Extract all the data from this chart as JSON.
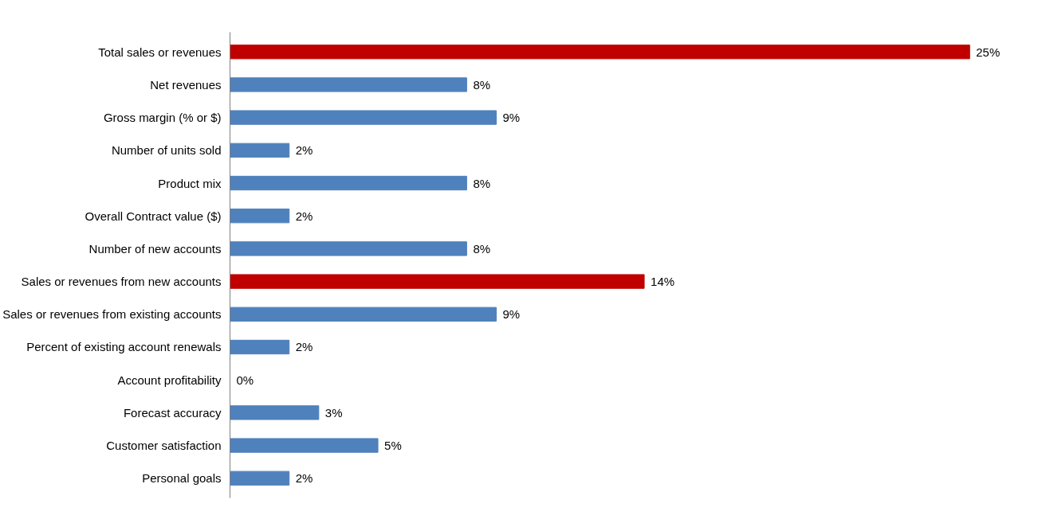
{
  "chart_data": {
    "type": "bar",
    "orientation": "horizontal",
    "grid": false,
    "value_labels": [
      "25%",
      "8%",
      "9%",
      "2%",
      "8%",
      "2%",
      "8%",
      "14%",
      "9%",
      "2%",
      "0%",
      "3%",
      "5%",
      "2%"
    ],
    "categories": [
      "Total sales or revenues",
      "Net revenues",
      "Gross margin (% or $)",
      "Number of units sold",
      "Product mix",
      "Overall Contract value ($)",
      "Number of new accounts",
      "Sales or revenues from new accounts",
      "Sales or revenues from existing accounts",
      "Percent of existing account renewals",
      "Account profitability",
      "Forecast accuracy",
      "Customer satisfaction",
      "Personal goals"
    ],
    "values": [
      25,
      8,
      9,
      2,
      8,
      2,
      8,
      14,
      9,
      2,
      0,
      3,
      5,
      2
    ],
    "colors": [
      "#c00000",
      "#4f81bd",
      "#4f81bd",
      "#4f81bd",
      "#4f81bd",
      "#4f81bd",
      "#4f81bd",
      "#c00000",
      "#4f81bd",
      "#4f81bd",
      "#4f81bd",
      "#4f81bd",
      "#4f81bd",
      "#4f81bd"
    ]
  }
}
